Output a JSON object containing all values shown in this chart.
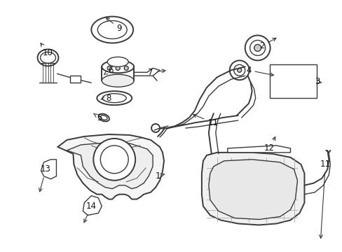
{
  "bg_color": "#ffffff",
  "line_color": "#3a3a3a",
  "text_color": "#111111",
  "figsize": [
    4.89,
    3.6
  ],
  "dpi": 100,
  "lw_thick": 1.4,
  "lw_med": 1.0,
  "lw_thin": 0.6,
  "label_fs": 8.5
}
